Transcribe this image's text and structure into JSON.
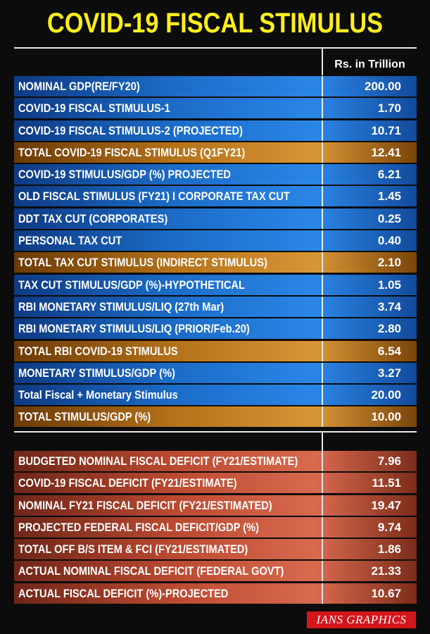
{
  "title": "COVID-19 FISCAL STIMULUS",
  "column_header": "Rs. in Trillion",
  "section1": [
    {
      "label": "NOMINAL GDP(RE/FY20)",
      "value": "200.00",
      "style": "blue"
    },
    {
      "label": "COVID-19 FISCAL STIMULUS-1",
      "value": "1.70",
      "style": "blue"
    },
    {
      "label": "COVID-19  FISCAL STIMULUS-2 (PROJECTED)",
      "value": "10.71",
      "style": "blue"
    },
    {
      "label": "TOTAL COVID-19 FISCAL STIMULUS (Q1FY21)",
      "value": "12.41",
      "style": "orange"
    },
    {
      "label": "COVID-19 STIMULUS/GDP (%) PROJECTED",
      "value": "6.21",
      "style": "blue"
    },
    {
      "label": "OLD FISCAL STIMULUS (FY21) I CORPORATE TAX CUT",
      "value": "1.45",
      "style": "blue"
    },
    {
      "label": "DDT TAX CUT (CORPORATES)",
      "value": "0.25",
      "style": "blue"
    },
    {
      "label": "PERSONAL TAX CUT",
      "value": "0.40",
      "style": "blue"
    },
    {
      "label": "TOTAL TAX CUT STIMULUS (INDIRECT STIMULUS)",
      "value": "2.10",
      "style": "orange"
    },
    {
      "label": "TAX CUT STIMULUS/GDP (%)-HYPOTHETICAL",
      "value": "1.05",
      "style": "blue"
    },
    {
      "label": "RBI MONETARY STIMULUS/LIQ (27th Mar)",
      "value": "3.74",
      "style": "blue"
    },
    {
      "label": "RBI MONETARY STIMULUS/LIQ (PRIOR/Feb.20)",
      "value": "2.80",
      "style": "blue"
    },
    {
      "label": "TOTAL RBI COVID-19 STIMULUS",
      "value": "6.54",
      "style": "orange"
    },
    {
      "label": "MONETARY STIMULUS/GDP (%)",
      "value": "3.27",
      "style": "blue"
    },
    {
      "label": "Total Fiscal + Monetary Stimulus",
      "value": "20.00",
      "style": "blue"
    },
    {
      "label": "TOTAL STIMULUS/GDP (%)",
      "value": "10.00",
      "style": "orange"
    }
  ],
  "section2": [
    {
      "label": "BUDGETED NOMINAL FISCAL DEFICIT (FY21/ESTIMATE)",
      "value": "7.96",
      "style": "red"
    },
    {
      "label": "COVID-19 FISCAL DEFICIT (FY21/ESTIMATE)",
      "value": "11.51",
      "style": "red"
    },
    {
      "label": "NOMINAL FY21 FISCAL DEFICIT (FY21/ESTIMATED)",
      "value": "19.47",
      "style": "red"
    },
    {
      "label": "PROJECTED FEDERAL FISCAL DEFICIT/GDP (%)",
      "value": "9.74",
      "style": "red"
    },
    {
      "label": "TOTAL OFF B/S ITEM & FCI (FY21/ESTIMATED)",
      "value": "1.86",
      "style": "red"
    },
    {
      "label": "ACTUAL NOMINAL FISCAL DEFICIT (FEDERAL GOVT)",
      "value": "21.33",
      "style": "red"
    },
    {
      "label": "ACTUAL FISCAL DEFICIT (%)-PROJECTED",
      "value": "10.67",
      "style": "red"
    }
  ],
  "credit": "IANS GRAPHICS"
}
